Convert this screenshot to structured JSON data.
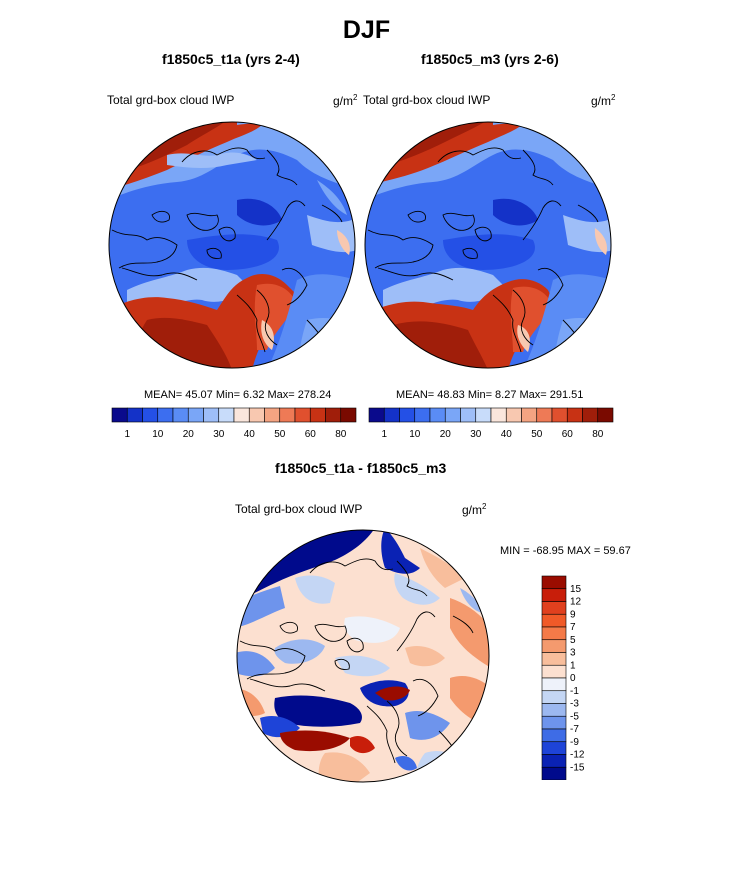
{
  "title": "DJF",
  "colors": {
    "land_outline": "#000000",
    "circle_border": "#000000"
  },
  "chart_data": [
    {
      "type": "heatmap",
      "projection": "north-polar-stereographic",
      "title": "f1850c5_t1a (yrs 2-4)",
      "left_label": "Total grd-box cloud IWP",
      "units_base": "g/m",
      "units_exp": "2",
      "stats_line": "MEAN=  45.07  Min=   6.32  Max= 278.24",
      "stats": {
        "mean": 45.07,
        "min": 6.32,
        "max": 278.24
      },
      "colorbar": {
        "levels": [
          1,
          5,
          10,
          15,
          20,
          25,
          30,
          35,
          40,
          45,
          50,
          55,
          60,
          70,
          80
        ],
        "tick_labels": [
          "1",
          "10",
          "20",
          "30",
          "40",
          "50",
          "60",
          "80"
        ],
        "colors": [
          "#0a0a8c",
          "#1432c8",
          "#2450e6",
          "#3c6ef0",
          "#5a8cf5",
          "#7aa6f7",
          "#9ebef8",
          "#c8dcfa",
          "#fae6dc",
          "#f8c8b0",
          "#f4a482",
          "#ee7a56",
          "#e0502e",
          "#c83214",
          "#a01e0a",
          "#7a0a00"
        ]
      }
    },
    {
      "type": "heatmap",
      "projection": "north-polar-stereographic",
      "title": "f1850c5_m3 (yrs 2-6)",
      "left_label": "Total grd-box cloud IWP",
      "units_base": "g/m",
      "units_exp": "2",
      "stats_line": "MEAN=  48.83  Min=   8.27  Max= 291.51",
      "stats": {
        "mean": 48.83,
        "min": 8.27,
        "max": 291.51
      },
      "colorbar": {
        "levels": [
          1,
          5,
          10,
          15,
          20,
          25,
          30,
          35,
          40,
          45,
          50,
          55,
          60,
          70,
          80
        ],
        "tick_labels": [
          "1",
          "10",
          "20",
          "30",
          "40",
          "50",
          "60",
          "80"
        ],
        "colors": [
          "#0a0a8c",
          "#1432c8",
          "#2450e6",
          "#3c6ef0",
          "#5a8cf5",
          "#7aa6f7",
          "#9ebef8",
          "#c8dcfa",
          "#fae6dc",
          "#f8c8b0",
          "#f4a482",
          "#ee7a56",
          "#e0502e",
          "#c83214",
          "#a01e0a",
          "#7a0a00"
        ]
      }
    },
    {
      "type": "heatmap",
      "projection": "north-polar-stereographic",
      "title": "f1850c5_t1a - f1850c5_m3",
      "left_label": "Total grd-box cloud IWP",
      "units_base": "g/m",
      "units_exp": "2",
      "stats_line": "MIN = -68.95 MAX =  59.67",
      "stats": {
        "min": -68.95,
        "max": 59.67
      },
      "colorbar": {
        "orientation": "vertical",
        "tick_labels": [
          "15",
          "12",
          "9",
          "7",
          "5",
          "3",
          "1",
          "0",
          "-1",
          "-3",
          "-5",
          "-7",
          "-9",
          "-12",
          "-15"
        ],
        "colors": [
          "#9a0c00",
          "#c81e0a",
          "#e0401e",
          "#f05a28",
          "#f47a48",
          "#f49a6e",
          "#f8be9c",
          "#fce0d0",
          "#eef2fa",
          "#c4d6f4",
          "#9cb8f0",
          "#6e94ec",
          "#3e6ce6",
          "#1e44d8",
          "#0a22b4",
          "#000a8c"
        ]
      }
    }
  ]
}
